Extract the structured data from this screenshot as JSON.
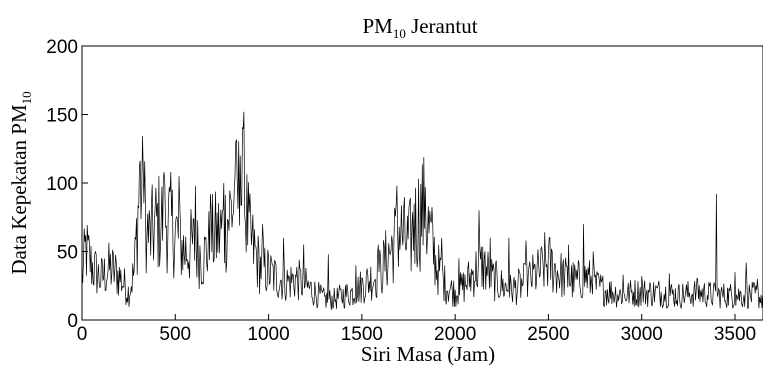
{
  "chart_data": {
    "type": "line",
    "title": "PM10 Jerantut",
    "title_main": "PM",
    "title_sub": "10",
    "title_rest": " Jerantut",
    "xlabel": "Siri Masa (Jam)",
    "ylabel": "Data Kepekatan PM10",
    "ylabel_main": "Data Kepekatan PM",
    "ylabel_sub": "10",
    "xlim": [
      0,
      3650
    ],
    "ylim": [
      0,
      200
    ],
    "xticks": [
      "0",
      "500",
      "1000",
      "1500",
      "2000",
      "2500",
      "3000",
      "3500"
    ],
    "yticks": [
      "0",
      "50",
      "100",
      "150",
      "200"
    ],
    "grid": false,
    "series": [
      {
        "color": "#000000",
        "anchors": [
          [
            0,
            30
          ],
          [
            20,
            52
          ],
          [
            50,
            40
          ],
          [
            100,
            30
          ],
          [
            150,
            38
          ],
          [
            200,
            32
          ],
          [
            250,
            20
          ],
          [
            280,
            35
          ],
          [
            310,
            100
          ],
          [
            330,
            85
          ],
          [
            360,
            60
          ],
          [
            400,
            70
          ],
          [
            450,
            75
          ],
          [
            500,
            65
          ],
          [
            550,
            50
          ],
          [
            600,
            55
          ],
          [
            650,
            45
          ],
          [
            700,
            60
          ],
          [
            750,
            65
          ],
          [
            800,
            80
          ],
          [
            830,
            90
          ],
          [
            860,
            95
          ],
          [
            900,
            60
          ],
          [
            950,
            40
          ],
          [
            1000,
            35
          ],
          [
            1050,
            30
          ],
          [
            1100,
            28
          ],
          [
            1150,
            30
          ],
          [
            1200,
            25
          ],
          [
            1250,
            20
          ],
          [
            1300,
            15
          ],
          [
            1350,
            15
          ],
          [
            1400,
            18
          ],
          [
            1450,
            20
          ],
          [
            1500,
            25
          ],
          [
            1550,
            30
          ],
          [
            1600,
            35
          ],
          [
            1650,
            50
          ],
          [
            1700,
            65
          ],
          [
            1750,
            55
          ],
          [
            1800,
            75
          ],
          [
            1830,
            80
          ],
          [
            1870,
            60
          ],
          [
            1900,
            40
          ],
          [
            1950,
            25
          ],
          [
            2000,
            20
          ],
          [
            2050,
            25
          ],
          [
            2100,
            35
          ],
          [
            2150,
            40
          ],
          [
            2200,
            30
          ],
          [
            2250,
            25
          ],
          [
            2300,
            22
          ],
          [
            2350,
            25
          ],
          [
            2400,
            30
          ],
          [
            2450,
            35
          ],
          [
            2500,
            42
          ],
          [
            2550,
            35
          ],
          [
            2600,
            30
          ],
          [
            2650,
            28
          ],
          [
            2700,
            32
          ],
          [
            2750,
            25
          ],
          [
            2800,
            22
          ],
          [
            2850,
            20
          ],
          [
            2900,
            18
          ],
          [
            2950,
            20
          ],
          [
            3000,
            20
          ],
          [
            3100,
            20
          ],
          [
            3200,
            18
          ],
          [
            3300,
            20
          ],
          [
            3400,
            18
          ],
          [
            3500,
            18
          ],
          [
            3600,
            18
          ],
          [
            3650,
            16
          ]
        ],
        "spikes": [
          [
            310,
            113
          ],
          [
            330,
            112
          ],
          [
            350,
            60
          ],
          [
            440,
            108
          ],
          [
            520,
            105
          ],
          [
            610,
            98
          ],
          [
            690,
            92
          ],
          [
            760,
            100
          ],
          [
            820,
            105
          ],
          [
            850,
            120
          ],
          [
            870,
            152
          ],
          [
            970,
            70
          ],
          [
            1080,
            60
          ],
          [
            1190,
            55
          ],
          [
            1320,
            48
          ],
          [
            1470,
            40
          ],
          [
            1590,
            55
          ],
          [
            1690,
            98
          ],
          [
            1780,
            85
          ],
          [
            1840,
            97
          ],
          [
            1930,
            60
          ],
          [
            2020,
            45
          ],
          [
            2130,
            80
          ],
          [
            2190,
            60
          ],
          [
            2290,
            60
          ],
          [
            2380,
            58
          ],
          [
            2480,
            64
          ],
          [
            2510,
            60
          ],
          [
            2610,
            55
          ],
          [
            2690,
            70
          ],
          [
            2740,
            50
          ],
          [
            2900,
            33
          ],
          [
            3000,
            32
          ],
          [
            3150,
            34
          ],
          [
            3300,
            30
          ],
          [
            3400,
            92
          ],
          [
            3500,
            35
          ],
          [
            3560,
            42
          ],
          [
            3620,
            30
          ]
        ]
      }
    ]
  }
}
